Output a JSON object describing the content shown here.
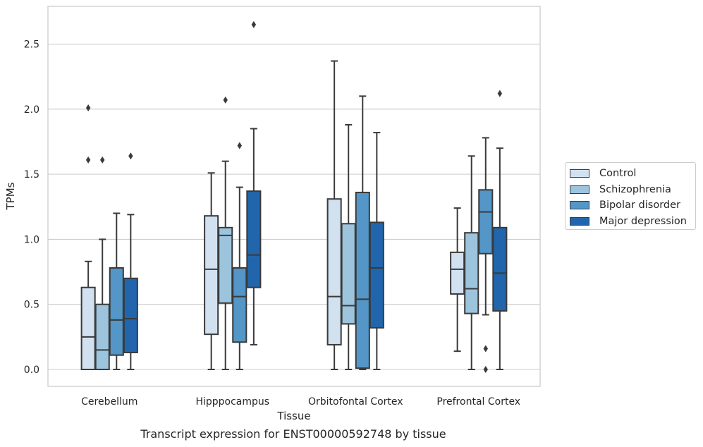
{
  "caption": "Transcript expression for ENST00000592748 by tissue",
  "chart_data": {
    "type": "box",
    "xlabel": "Tissue",
    "ylabel": "TPMs",
    "ylim": [
      -0.13,
      2.79
    ],
    "yticks": [
      0.0,
      0.5,
      1.0,
      1.5,
      2.0,
      2.5
    ],
    "ytick_labels": [
      "0.0",
      "0.5",
      "1.0",
      "1.5",
      "2.0",
      "2.5"
    ],
    "grid": "horizontal",
    "legend_position": "right",
    "categories": [
      "Cerebellum",
      "Hipppocampus",
      "Orbitofontal Cortex",
      "Prefrontal Cortex"
    ],
    "series": [
      {
        "name": "Control",
        "color": "#d1e1f0",
        "boxes": [
          {
            "whislo": 0.0,
            "q1": 0.0,
            "med": 0.25,
            "q3": 0.63,
            "whishi": 0.83,
            "fliers": [
              1.61,
              2.01
            ]
          },
          {
            "whislo": 0.0,
            "q1": 0.27,
            "med": 0.77,
            "q3": 1.18,
            "whishi": 1.51,
            "fliers": []
          },
          {
            "whislo": 0.0,
            "q1": 0.19,
            "med": 0.56,
            "q3": 1.31,
            "whishi": 2.37,
            "fliers": []
          },
          {
            "whislo": 0.14,
            "q1": 0.58,
            "med": 0.77,
            "q3": 0.9,
            "whishi": 1.24,
            "fliers": []
          }
        ]
      },
      {
        "name": "Schizophrenia",
        "color": "#9dc4dd",
        "boxes": [
          {
            "whislo": 0.0,
            "q1": 0.0,
            "med": 0.15,
            "q3": 0.5,
            "whishi": 1.0,
            "fliers": [
              1.61
            ]
          },
          {
            "whislo": 0.0,
            "q1": 0.51,
            "med": 1.03,
            "q3": 1.09,
            "whishi": 1.6,
            "fliers": [
              2.07
            ]
          },
          {
            "whislo": 0.0,
            "q1": 0.35,
            "med": 0.49,
            "q3": 1.12,
            "whishi": 1.88,
            "fliers": []
          },
          {
            "whislo": 0.0,
            "q1": 0.43,
            "med": 0.62,
            "q3": 1.05,
            "whishi": 1.64,
            "fliers": []
          }
        ]
      },
      {
        "name": "Bipolar disorder",
        "color": "#5396c7",
        "boxes": [
          {
            "whislo": 0.0,
            "q1": 0.11,
            "med": 0.38,
            "q3": 0.78,
            "whishi": 1.2,
            "fliers": []
          },
          {
            "whislo": 0.0,
            "q1": 0.21,
            "med": 0.56,
            "q3": 0.78,
            "whishi": 1.4,
            "fliers": [
              1.72
            ]
          },
          {
            "whislo": 0.0,
            "q1": 0.01,
            "med": 0.54,
            "q3": 1.36,
            "whishi": 2.1,
            "fliers": []
          },
          {
            "whislo": 0.42,
            "q1": 0.89,
            "med": 1.21,
            "q3": 1.38,
            "whishi": 1.78,
            "fliers": [
              0.16,
              0.0
            ]
          }
        ]
      },
      {
        "name": "Major depression",
        "color": "#2166ac",
        "boxes": [
          {
            "whislo": 0.0,
            "q1": 0.13,
            "med": 0.39,
            "q3": 0.7,
            "whishi": 1.19,
            "fliers": [
              1.64
            ]
          },
          {
            "whislo": 0.19,
            "q1": 0.63,
            "med": 0.88,
            "q3": 1.37,
            "whishi": 1.85,
            "fliers": [
              2.65
            ]
          },
          {
            "whislo": 0.0,
            "q1": 0.32,
            "med": 0.78,
            "q3": 1.13,
            "whishi": 1.82,
            "fliers": []
          },
          {
            "whislo": 0.0,
            "q1": 0.45,
            "med": 0.74,
            "q3": 1.09,
            "whishi": 1.7,
            "fliers": [
              2.12
            ]
          }
        ]
      }
    ]
  }
}
